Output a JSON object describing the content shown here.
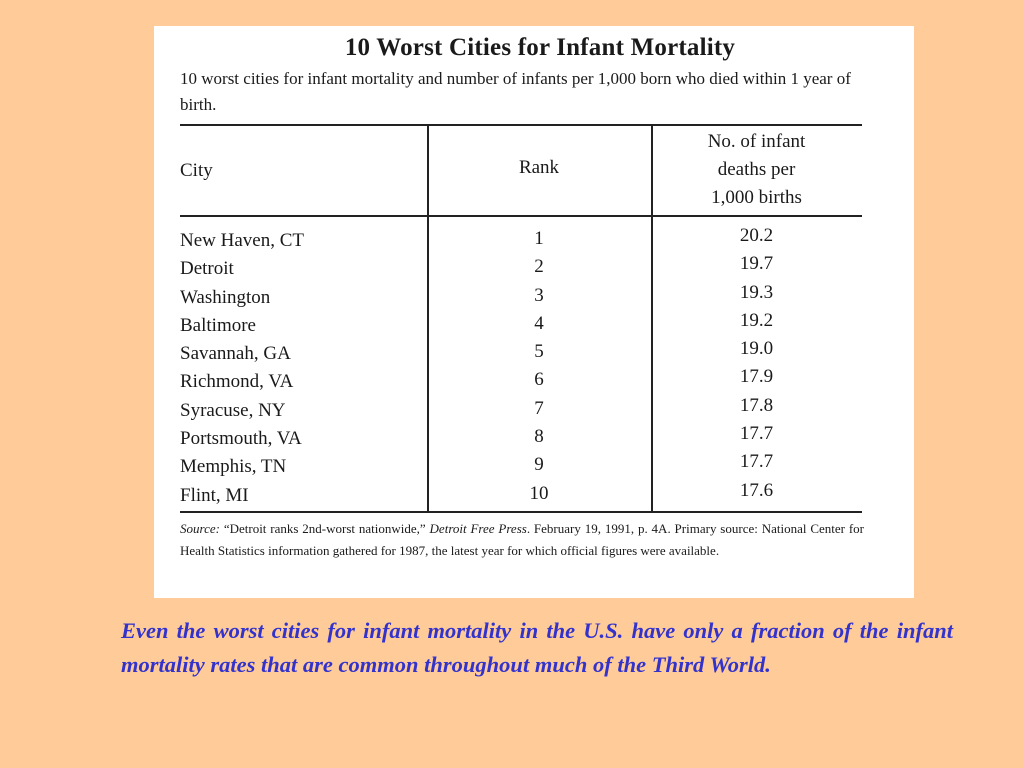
{
  "table": {
    "title": "10 Worst Cities for Infant Mortality",
    "subtitle": "10 worst cities for infant mortality and number of infants per 1,000 born who died within 1 year of birth.",
    "headers": {
      "city": "City",
      "rank": "Rank",
      "deaths_line1": "No. of infant",
      "deaths_line2": "deaths per",
      "deaths_line3": "1,000 births"
    },
    "rows": [
      {
        "city": "New Haven, CT",
        "rank": "1",
        "deaths": "20.2"
      },
      {
        "city": "Detroit",
        "rank": "2",
        "deaths": "19.7"
      },
      {
        "city": "Washington",
        "rank": "3",
        "deaths": "19.3"
      },
      {
        "city": "Baltimore",
        "rank": "4",
        "deaths": "19.2"
      },
      {
        "city": "Savannah, GA",
        "rank": "5",
        "deaths": "19.0"
      },
      {
        "city": "Richmond, VA",
        "rank": "6",
        "deaths": "17.9"
      },
      {
        "city": "Syracuse, NY",
        "rank": "7",
        "deaths": "17.8"
      },
      {
        "city": "Portsmouth, VA",
        "rank": "8",
        "deaths": "17.7"
      },
      {
        "city": "Memphis, TN",
        "rank": "9",
        "deaths": "17.7"
      },
      {
        "city": "Flint, MI",
        "rank": "10",
        "deaths": "17.6"
      }
    ],
    "source": {
      "label": "Source:",
      "quote": "“Detroit ranks 2nd-worst nationwide,”",
      "publication": "Detroit Free Press",
      "rest": ". February 19, 1991, p. 4A. Primary source: National Center for Health Statistics information gathered for 1987, the latest year for which official figures were available."
    }
  },
  "caption": "Even the worst cities for infant mortality in the U.S. have only a fraction of the infant mortality rates that are common throughout much of the Third World.",
  "colors": {
    "background": "#ffcc99",
    "caption_text": "#3333cc",
    "table_background": "#ffffff"
  }
}
